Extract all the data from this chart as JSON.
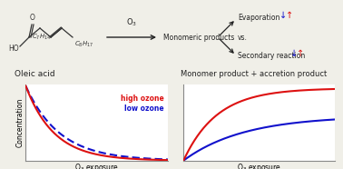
{
  "bg_color": "#f0efe8",
  "left_plot": {
    "title": "Oleic acid",
    "xlabel": "O₃ exposure",
    "ylabel": "Concentration",
    "high_ozone_color": "#dd1111",
    "low_ozone_color": "#1111cc",
    "high_ozone_decay": 5.0,
    "low_ozone_decay": 4.2
  },
  "right_plot": {
    "title": "Monomer product + accretion product",
    "xlabel": "O₃ exposure",
    "high_ozone_color": "#dd1111",
    "low_ozone_color": "#1111cc",
    "high_ozone_max": 0.97,
    "low_ozone_max": 0.6,
    "high_ozone_rate": 4.5,
    "low_ozone_rate": 2.5
  },
  "legend_high": "high ozone",
  "legend_low": "low ozone",
  "struct_color": "#333333",
  "arrow_color": "#222222",
  "text_color": "#222222"
}
